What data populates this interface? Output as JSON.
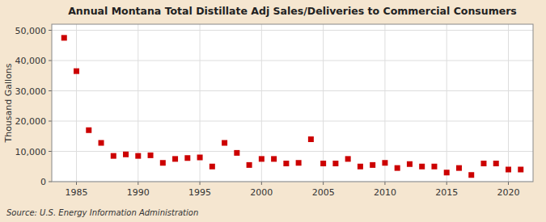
{
  "chart_data": {
    "type": "scatter",
    "title": "Annual Montana Total Distillate Adj Sales/Deliveries to Commercial Consumers",
    "y_label": "Thousand Gallons",
    "annotations": [
      "Source: U.S. Energy Information Administration"
    ],
    "color": "#cc0000",
    "marker": "square",
    "grid": true,
    "xlim": [
      1983,
      2022
    ],
    "ylim": [
      0,
      52000
    ],
    "xticks": [
      1985,
      1990,
      1995,
      2000,
      2005,
      2010,
      2015,
      2020
    ],
    "yticks": [
      0,
      {
        "value": 10000,
        "label": "10,000"
      },
      {
        "value": 20000,
        "label": "20,000"
      },
      {
        "value": 30000,
        "label": "30,000"
      },
      {
        "value": 40000,
        "label": "40,000"
      },
      {
        "value": 50000,
        "label": "50,000"
      }
    ],
    "x": [
      1984,
      1985,
      1986,
      1987,
      1988,
      1989,
      1990,
      1991,
      1992,
      1993,
      1994,
      1995,
      1996,
      1997,
      1998,
      1999,
      2000,
      2001,
      2002,
      2003,
      2004,
      2005,
      2006,
      2007,
      2008,
      2009,
      2010,
      2011,
      2012,
      2013,
      2014,
      2015,
      2016,
      2017,
      2018,
      2019,
      2020,
      2021
    ],
    "values": [
      47500,
      36500,
      17000,
      12800,
      8500,
      9000,
      8500,
      8700,
      6200,
      7500,
      7800,
      8000,
      5000,
      12800,
      9500,
      5500,
      7500,
      7500,
      6000,
      6200,
      14000,
      6000,
      6000,
      7500,
      5000,
      5500,
      6200,
      4500,
      5800,
      5000,
      5000,
      3000,
      4500,
      2200,
      6000,
      6000,
      4000,
      4000
    ]
  }
}
